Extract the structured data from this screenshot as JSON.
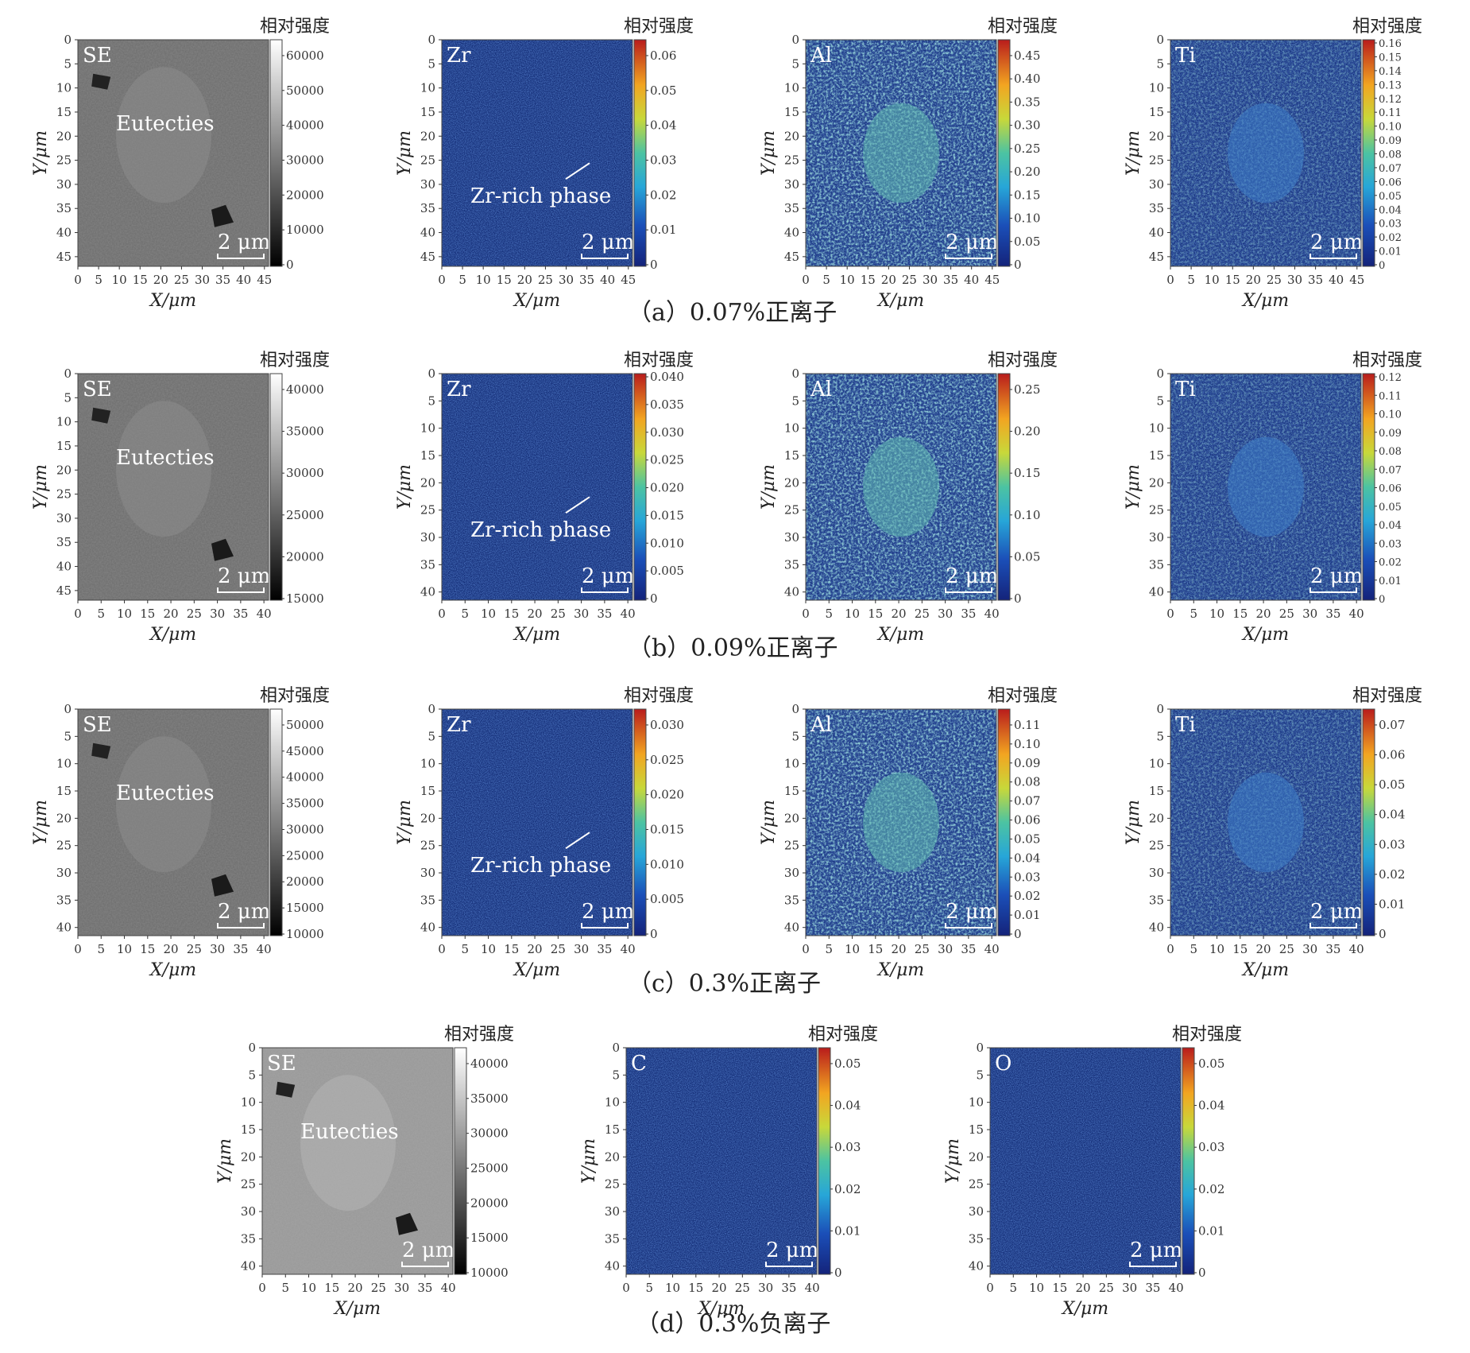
{
  "rows": [
    {
      "caption": "（a）0.07%正离子",
      "panels": [
        {
          "label": "SE",
          "map": "gray",
          "annot": "Eutecties",
          "cbar_title": "相对强度",
          "cticks": [
            "60000",
            "50000",
            "40000",
            "30000",
            "20000",
            "10000",
            "0"
          ],
          "cticks_top_gap": true,
          "xticks": [
            "0",
            "5",
            "10",
            "15",
            "20",
            "25",
            "30",
            "35",
            "40",
            "45"
          ],
          "yticks": [
            "0",
            "5",
            "10",
            "15",
            "20",
            "25",
            "30",
            "35",
            "40",
            "45"
          ],
          "scale": "2 μm",
          "xlabel": "X/μm",
          "ylabel": "Y/μm"
        },
        {
          "label": "Zr",
          "map": "jet-low",
          "annot": "Zr-rich phase",
          "cbar_title": "相对强度",
          "cticks": [
            "0.06",
            "0.05",
            "0.04",
            "0.03",
            "0.02",
            "0.01",
            "0"
          ],
          "cticks_top_gap": true,
          "xticks": [
            "0",
            "5",
            "10",
            "15",
            "20",
            "25",
            "30",
            "35",
            "40",
            "45"
          ],
          "yticks": [
            "0",
            "5",
            "10",
            "15",
            "20",
            "25",
            "30",
            "35",
            "40",
            "45"
          ],
          "scale": "2 μm",
          "xlabel": "X/μm",
          "ylabel": "Y/μm"
        },
        {
          "label": "Al",
          "map": "jet-mid",
          "cbar_title": "相对强度",
          "cticks": [
            "0.45",
            "0.40",
            "0.35",
            "0.30",
            "0.25",
            "0.20",
            "0.15",
            "0.10",
            "0.05",
            "0"
          ],
          "cticks_top_gap": true,
          "xticks": [
            "0",
            "5",
            "10",
            "15",
            "20",
            "25",
            "30",
            "35",
            "40",
            "45"
          ],
          "yticks": [
            "0",
            "5",
            "10",
            "15",
            "20",
            "25",
            "30",
            "35",
            "40",
            "45"
          ],
          "scale": "2 μm",
          "xlabel": "X/μm",
          "ylabel": "Y/μm"
        },
        {
          "label": "Ti",
          "map": "jet-lowmid",
          "cbar_title": "相对强度",
          "cticks": [
            "0.16",
            "0.15",
            "0.14",
            "0.13",
            "0.12",
            "0.11",
            "0.10",
            "0.09",
            "0.08",
            "0.07",
            "0.06",
            "0.05",
            "0.04",
            "0.03",
            "0.02",
            "0.01",
            "0"
          ],
          "cticks_top_gap": false,
          "xticks": [
            "0",
            "5",
            "10",
            "15",
            "20",
            "25",
            "30",
            "35",
            "40",
            "45"
          ],
          "yticks": [
            "0",
            "5",
            "10",
            "15",
            "20",
            "25",
            "30",
            "35",
            "40",
            "45"
          ],
          "scale": "2 μm",
          "xlabel": "X/μm",
          "ylabel": "Y/μm"
        }
      ]
    },
    {
      "caption": "（b）0.09%正离子",
      "panels": [
        {
          "label": "SE",
          "map": "gray",
          "annot": "Eutecties",
          "cbar_title": "相对强度",
          "cticks": [
            "40000",
            "35000",
            "30000",
            "25000",
            "20000",
            "15000"
          ],
          "cticks_top_gap": true,
          "xticks": [
            "0",
            "5",
            "10",
            "15",
            "20",
            "25",
            "30",
            "35",
            "40"
          ],
          "yticks": [
            "0",
            "5",
            "10",
            "15",
            "20",
            "25",
            "30",
            "35",
            "40",
            "45"
          ],
          "scale": "2 μm",
          "xlabel": "X/μm",
          "ylabel": "Y/μm"
        },
        {
          "label": "Zr",
          "map": "jet-low",
          "annot": "Zr-rich phase",
          "cbar_title": "相对强度",
          "cticks": [
            "0.040",
            "0.035",
            "0.030",
            "0.025",
            "0.020",
            "0.015",
            "0.010",
            "0.005",
            "0"
          ],
          "cticks_top_gap": false,
          "xticks": [
            "0",
            "5",
            "10",
            "15",
            "20",
            "25",
            "30",
            "35",
            "40"
          ],
          "yticks": [
            "0",
            "5",
            "10",
            "15",
            "20",
            "25",
            "30",
            "35",
            "40"
          ],
          "scale": "2 μm",
          "xlabel": "X/μm",
          "ylabel": "Y/μm"
        },
        {
          "label": "Al",
          "map": "jet-mid",
          "cbar_title": "相对强度",
          "cticks": [
            "0.25",
            "0.20",
            "0.15",
            "0.10",
            "0.05",
            "0"
          ],
          "cticks_top_gap": true,
          "xticks": [
            "0",
            "5",
            "10",
            "15",
            "20",
            "25",
            "30",
            "35",
            "40"
          ],
          "yticks": [
            "0",
            "5",
            "10",
            "15",
            "20",
            "25",
            "30",
            "35",
            "40"
          ],
          "scale": "2 μm",
          "xlabel": "X/μm",
          "ylabel": "Y/μm"
        },
        {
          "label": "Ti",
          "map": "jet-lowmid",
          "cbar_title": "相对强度",
          "cticks": [
            "0.12",
            "0.11",
            "0.10",
            "0.09",
            "0.08",
            "0.07",
            "0.06",
            "0.05",
            "0.04",
            "0.03",
            "0.02",
            "0.01",
            "0"
          ],
          "cticks_top_gap": false,
          "xticks": [
            "0",
            "5",
            "10",
            "15",
            "20",
            "25",
            "30",
            "35",
            "40"
          ],
          "yticks": [
            "0",
            "5",
            "10",
            "15",
            "20",
            "25",
            "30",
            "35",
            "40"
          ],
          "scale": "2 μm",
          "xlabel": "X/μm",
          "ylabel": "Y/μm"
        }
      ]
    },
    {
      "caption": "（c）0.3%正离子",
      "panels": [
        {
          "label": "SE",
          "map": "gray",
          "annot": "Eutecties",
          "cbar_title": "相对强度",
          "cticks": [
            "50000",
            "45000",
            "40000",
            "35000",
            "30000",
            "25000",
            "20000",
            "15000",
            "10000"
          ],
          "cticks_top_gap": true,
          "xticks": [
            "0",
            "5",
            "10",
            "15",
            "20",
            "25",
            "30",
            "35",
            "40"
          ],
          "yticks": [
            "0",
            "5",
            "10",
            "15",
            "20",
            "25",
            "30",
            "35",
            "40"
          ],
          "scale": "2 μm",
          "xlabel": "X/μm",
          "ylabel": "Y/μm"
        },
        {
          "label": "Zr",
          "map": "jet-low",
          "annot": "Zr-rich phase",
          "cbar_title": "相对强度",
          "cticks": [
            "0.030",
            "0.025",
            "0.020",
            "0.015",
            "0.010",
            "0.005",
            "0"
          ],
          "cticks_top_gap": true,
          "xticks": [
            "0",
            "5",
            "10",
            "15",
            "20",
            "25",
            "30",
            "35",
            "40"
          ],
          "yticks": [
            "0",
            "5",
            "10",
            "15",
            "20",
            "25",
            "30",
            "35",
            "40"
          ],
          "scale": "2 μm",
          "xlabel": "X/μm",
          "ylabel": "Y/μm"
        },
        {
          "label": "Al",
          "map": "jet-mid",
          "cbar_title": "相对强度",
          "cticks": [
            "0.11",
            "0.10",
            "0.09",
            "0.08",
            "0.07",
            "0.06",
            "0.05",
            "0.04",
            "0.03",
            "0.02",
            "0.01",
            "0"
          ],
          "cticks_top_gap": true,
          "xticks": [
            "0",
            "5",
            "10",
            "15",
            "20",
            "25",
            "30",
            "35",
            "40"
          ],
          "yticks": [
            "0",
            "5",
            "10",
            "15",
            "20",
            "25",
            "30",
            "35",
            "40"
          ],
          "scale": "2 μm",
          "xlabel": "X/μm",
          "ylabel": "Y/μm"
        },
        {
          "label": "Ti",
          "map": "jet-lowmid",
          "cbar_title": "相对强度",
          "cticks": [
            "0.07",
            "0.06",
            "0.05",
            "0.04",
            "0.03",
            "0.02",
            "0.01",
            "0"
          ],
          "cticks_top_gap": true,
          "xticks": [
            "0",
            "5",
            "10",
            "15",
            "20",
            "25",
            "30",
            "35",
            "40"
          ],
          "yticks": [
            "0",
            "5",
            "10",
            "15",
            "20",
            "25",
            "30",
            "35",
            "40"
          ],
          "scale": "2 μm",
          "xlabel": "X/μm",
          "ylabel": "Y/μm"
        }
      ]
    },
    {
      "caption": "（d）0.3%负离子",
      "panels": [
        {
          "label": "SE",
          "map": "gray-light",
          "annot": "Eutecties",
          "cbar_title": "相对强度",
          "cticks": [
            "40000",
            "35000",
            "30000",
            "25000",
            "20000",
            "15000",
            "10000"
          ],
          "cticks_top_gap": true,
          "xticks": [
            "0",
            "5",
            "10",
            "15",
            "20",
            "25",
            "30",
            "35",
            "40"
          ],
          "yticks": [
            "0",
            "5",
            "10",
            "15",
            "20",
            "25",
            "30",
            "35",
            "40"
          ],
          "scale": "2 μm",
          "xlabel": "X/μm",
          "ylabel": "Y/μm"
        },
        {
          "label": "C",
          "map": "jet-low",
          "cbar_title": "相对强度",
          "cticks": [
            "0.05",
            "0.04",
            "0.03",
            "0.02",
            "0.01",
            "0"
          ],
          "cticks_top_gap": true,
          "xticks": [
            "0",
            "5",
            "10",
            "15",
            "20",
            "25",
            "30",
            "35",
            "40"
          ],
          "yticks": [
            "0",
            "5",
            "10",
            "15",
            "20",
            "25",
            "30",
            "35",
            "40"
          ],
          "scale": "2 μm",
          "xlabel": "X/μm",
          "ylabel": "Y/μm"
        },
        {
          "label": "O",
          "map": "jet-low",
          "cbar_title": "相对强度",
          "cticks": [
            "0.05",
            "0.04",
            "0.03",
            "0.02",
            "0.01",
            "0"
          ],
          "cticks_top_gap": true,
          "xticks": [
            "0",
            "5",
            "10",
            "15",
            "20",
            "25",
            "30",
            "35",
            "40"
          ],
          "yticks": [
            "0",
            "5",
            "10",
            "15",
            "20",
            "25",
            "30",
            "35",
            "40"
          ],
          "scale": "2 μm",
          "xlabel": "X/μm",
          "ylabel": "Y/μm"
        }
      ]
    }
  ],
  "colors": {
    "jet_background": "#16307a",
    "gray_background": "#6e6e6e",
    "label_text": "#ffffff"
  }
}
